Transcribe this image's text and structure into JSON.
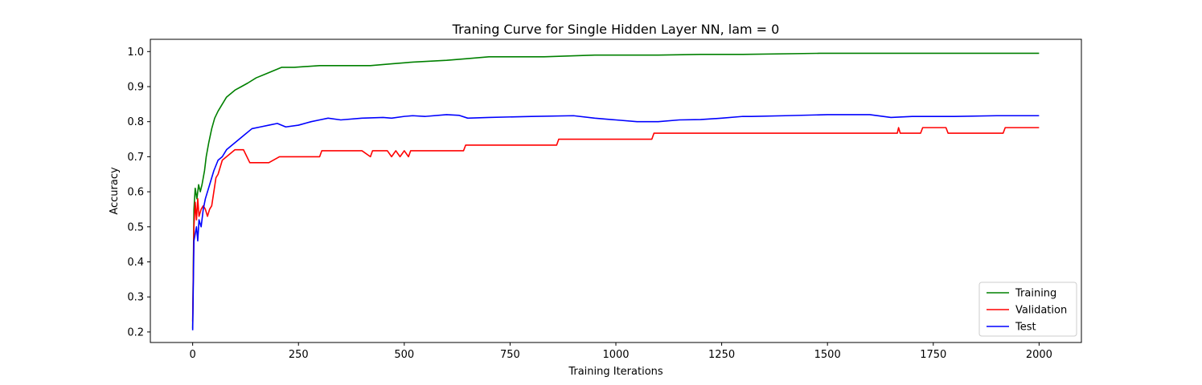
{
  "chart_data": {
    "type": "line",
    "title": "Traning Curve for Single Hidden Layer NN, lam = 0",
    "xlabel": "Training Iterations",
    "ylabel": "Accuracy",
    "xlim": [
      -100,
      2100
    ],
    "ylim": [
      0.17,
      1.035
    ],
    "xticks": [
      0,
      250,
      500,
      750,
      1000,
      1250,
      1500,
      1750,
      2000
    ],
    "yticks": [
      0.2,
      0.3,
      0.4,
      0.5,
      0.6,
      0.7,
      0.8,
      0.9,
      1.0
    ],
    "xtick_labels": [
      "0",
      "250",
      "500",
      "750",
      "1000",
      "1250",
      "1500",
      "1750",
      "2000"
    ],
    "ytick_labels": [
      "0.2",
      "0.3",
      "0.4",
      "0.5",
      "0.6",
      "0.7",
      "0.8",
      "0.9",
      "1.0"
    ],
    "grid": false,
    "legend_position": "lower-right",
    "series": [
      {
        "name": "Training",
        "color": "#008000",
        "x": [
          0,
          3,
          6,
          10,
          14,
          18,
          22,
          28,
          32,
          38,
          45,
          52,
          60,
          70,
          80,
          90,
          100,
          115,
          130,
          150,
          170,
          190,
          210,
          240,
          300,
          350,
          420,
          470,
          520,
          600,
          650,
          700,
          750,
          830,
          950,
          1100,
          1200,
          1300,
          1480,
          1600,
          1800,
          2000
        ],
        "y": [
          0.21,
          0.55,
          0.61,
          0.58,
          0.62,
          0.6,
          0.62,
          0.66,
          0.7,
          0.74,
          0.78,
          0.81,
          0.83,
          0.85,
          0.87,
          0.88,
          0.89,
          0.9,
          0.91,
          0.925,
          0.935,
          0.945,
          0.955,
          0.955,
          0.96,
          0.96,
          0.96,
          0.965,
          0.97,
          0.975,
          0.98,
          0.985,
          0.985,
          0.985,
          0.99,
          0.99,
          0.992,
          0.992,
          0.995,
          0.995,
          0.995,
          0.995
        ]
      },
      {
        "name": "Validation",
        "color": "#ff0000",
        "x": [
          0,
          3,
          6,
          9,
          12,
          15,
          20,
          25,
          30,
          35,
          40,
          45,
          50,
          55,
          60,
          65,
          70,
          80,
          90,
          100,
          110,
          120,
          135,
          150,
          180,
          205,
          215,
          250,
          300,
          305,
          350,
          400,
          420,
          425,
          460,
          470,
          480,
          490,
          500,
          510,
          515,
          520,
          560,
          600,
          640,
          645,
          700,
          800,
          860,
          865,
          950,
          1000,
          1085,
          1090,
          1200,
          1400,
          1600,
          1665,
          1668,
          1672,
          1720,
          1725,
          1780,
          1785,
          1850,
          1915,
          1920,
          2000
        ],
        "y": [
          0.23,
          0.5,
          0.57,
          0.52,
          0.58,
          0.53,
          0.55,
          0.56,
          0.55,
          0.53,
          0.55,
          0.56,
          0.6,
          0.64,
          0.65,
          0.67,
          0.69,
          0.7,
          0.71,
          0.72,
          0.72,
          0.72,
          0.683,
          0.683,
          0.683,
          0.7,
          0.7,
          0.7,
          0.7,
          0.717,
          0.717,
          0.717,
          0.7,
          0.717,
          0.717,
          0.7,
          0.717,
          0.7,
          0.717,
          0.7,
          0.717,
          0.717,
          0.717,
          0.717,
          0.717,
          0.733,
          0.733,
          0.733,
          0.733,
          0.75,
          0.75,
          0.75,
          0.75,
          0.767,
          0.767,
          0.767,
          0.767,
          0.767,
          0.783,
          0.767,
          0.767,
          0.783,
          0.783,
          0.767,
          0.767,
          0.767,
          0.783,
          0.783
        ]
      },
      {
        "name": "Test",
        "color": "#0000ff",
        "x": [
          0,
          3,
          6,
          9,
          12,
          15,
          20,
          25,
          30,
          40,
          50,
          60,
          70,
          80,
          90,
          100,
          110,
          120,
          140,
          160,
          180,
          200,
          220,
          250,
          280,
          300,
          320,
          350,
          400,
          450,
          470,
          500,
          520,
          550,
          600,
          630,
          650,
          700,
          800,
          900,
          950,
          1000,
          1050,
          1100,
          1150,
          1200,
          1250,
          1300,
          1320,
          1400,
          1500,
          1600,
          1650,
          1700,
          1800,
          1900,
          2000
        ],
        "y": [
          0.205,
          0.46,
          0.48,
          0.5,
          0.46,
          0.52,
          0.5,
          0.55,
          0.58,
          0.62,
          0.66,
          0.69,
          0.7,
          0.72,
          0.73,
          0.74,
          0.75,
          0.76,
          0.78,
          0.785,
          0.79,
          0.795,
          0.785,
          0.79,
          0.8,
          0.805,
          0.81,
          0.805,
          0.81,
          0.812,
          0.81,
          0.815,
          0.817,
          0.815,
          0.82,
          0.818,
          0.81,
          0.812,
          0.815,
          0.817,
          0.81,
          0.805,
          0.8,
          0.8,
          0.805,
          0.806,
          0.81,
          0.815,
          0.815,
          0.817,
          0.82,
          0.82,
          0.812,
          0.815,
          0.815,
          0.817,
          0.817
        ]
      }
    ]
  }
}
